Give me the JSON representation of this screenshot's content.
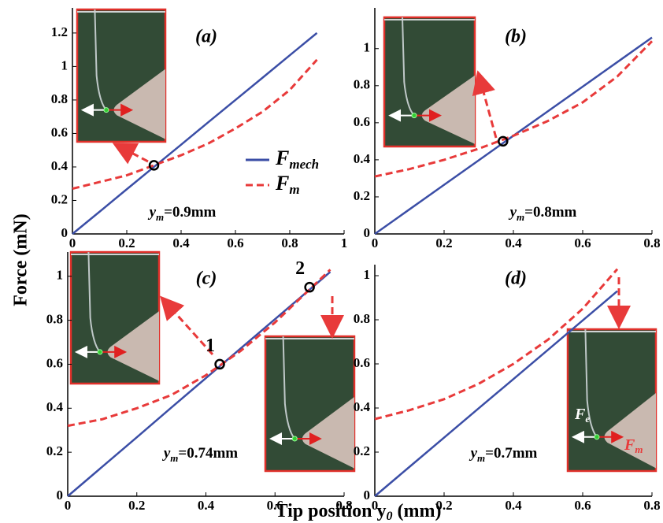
{
  "chart_data": [
    {
      "type": "line",
      "title": "(a)",
      "xlim": [
        0,
        1
      ],
      "ylim": [
        0,
        1.35
      ],
      "xticks": [
        0,
        0.2,
        0.4,
        0.6,
        0.8,
        1
      ],
      "yticks": [
        0,
        0.2,
        0.4,
        0.6,
        0.8,
        1,
        1.2
      ],
      "x": [
        0,
        0.1,
        0.2,
        0.3,
        0.4,
        0.5,
        0.6,
        0.7,
        0.8,
        0.9
      ],
      "series": [
        {
          "name": "Fmech",
          "color": "#3b4ea6",
          "values": [
            0,
            0.133,
            0.267,
            0.4,
            0.533,
            0.667,
            0.8,
            0.933,
            1.067,
            1.2
          ]
        },
        {
          "name": "Fm",
          "color": "#e83a3a",
          "values": [
            0.27,
            0.31,
            0.35,
            0.41,
            0.47,
            0.54,
            0.63,
            0.73,
            0.86,
            1.04
          ]
        }
      ],
      "annotation": [
        "y",
        "m",
        "=0.9mm"
      ],
      "legend": true,
      "intersections": [
        {
          "x": 0.3,
          "y": 0.41
        }
      ]
    },
    {
      "type": "line",
      "title": "(b)",
      "xlim": [
        0,
        0.8
      ],
      "ylim": [
        0,
        1.22
      ],
      "xticks": [
        0,
        0.2,
        0.4,
        0.6,
        0.8
      ],
      "yticks": [
        0,
        0.2,
        0.4,
        0.6,
        0.8,
        1
      ],
      "x": [
        0,
        0.1,
        0.2,
        0.3,
        0.4,
        0.5,
        0.6,
        0.7,
        0.8
      ],
      "series": [
        {
          "name": "Fmech",
          "color": "#3b4ea6",
          "values": [
            0,
            0.1325,
            0.265,
            0.3975,
            0.53,
            0.6625,
            0.795,
            0.9275,
            1.06
          ]
        },
        {
          "name": "Fm",
          "color": "#e83a3a",
          "values": [
            0.31,
            0.35,
            0.4,
            0.46,
            0.53,
            0.61,
            0.71,
            0.85,
            1.04
          ]
        }
      ],
      "annotation": [
        "y",
        "m",
        "=0.8mm"
      ],
      "legend": false,
      "intersections": [
        {
          "x": 0.37,
          "y": 0.5
        }
      ]
    },
    {
      "type": "line",
      "title": "(c)",
      "xlim": [
        0,
        0.8
      ],
      "ylim": [
        0,
        1.11
      ],
      "xticks": [
        0,
        0.2,
        0.4,
        0.6,
        0.8
      ],
      "yticks": [
        0,
        0.2,
        0.4,
        0.6,
        0.8,
        1
      ],
      "x": [
        0,
        0.1,
        0.2,
        0.3,
        0.4,
        0.5,
        0.6,
        0.7,
        0.76
      ],
      "series": [
        {
          "name": "Fmech",
          "color": "#3b4ea6",
          "values": [
            0,
            0.134,
            0.268,
            0.403,
            0.537,
            0.671,
            0.805,
            0.939,
            1.02
          ]
        },
        {
          "name": "Fm",
          "color": "#e83a3a",
          "values": [
            0.32,
            0.35,
            0.4,
            0.46,
            0.55,
            0.66,
            0.79,
            0.94,
            1.03
          ]
        }
      ],
      "annotation": [
        "y",
        "m",
        "=0.74mm"
      ],
      "legend": false,
      "intersections": [
        {
          "x": 0.44,
          "y": 0.6,
          "label": "1"
        },
        {
          "x": 0.7,
          "y": 0.95,
          "label": "2"
        }
      ]
    },
    {
      "type": "line",
      "title": "(d)",
      "xlim": [
        0,
        0.8
      ],
      "ylim": [
        0,
        1.05
      ],
      "xticks": [
        0,
        0.2,
        0.4,
        0.6,
        0.8
      ],
      "yticks": [
        0,
        0.2,
        0.4,
        0.6,
        0.8,
        1
      ],
      "x": [
        0,
        0.1,
        0.2,
        0.3,
        0.4,
        0.5,
        0.6,
        0.7
      ],
      "series": [
        {
          "name": "Fmech",
          "color": "#3b4ea6",
          "values": [
            0,
            0.133,
            0.266,
            0.399,
            0.531,
            0.664,
            0.797,
            0.93
          ]
        },
        {
          "name": "Fm",
          "color": "#e83a3a",
          "values": [
            0.35,
            0.39,
            0.44,
            0.51,
            0.6,
            0.71,
            0.85,
            1.03
          ]
        }
      ],
      "annotation": [
        "y",
        "m",
        "=0.7mm"
      ],
      "legend": false,
      "intersections": []
    }
  ],
  "xlabel": [
    "Tip position y",
    "0",
    " (mm)"
  ],
  "ylabel": "Force (mN)",
  "inset_labels": [
    "F",
    "e",
    "F",
    "m"
  ]
}
